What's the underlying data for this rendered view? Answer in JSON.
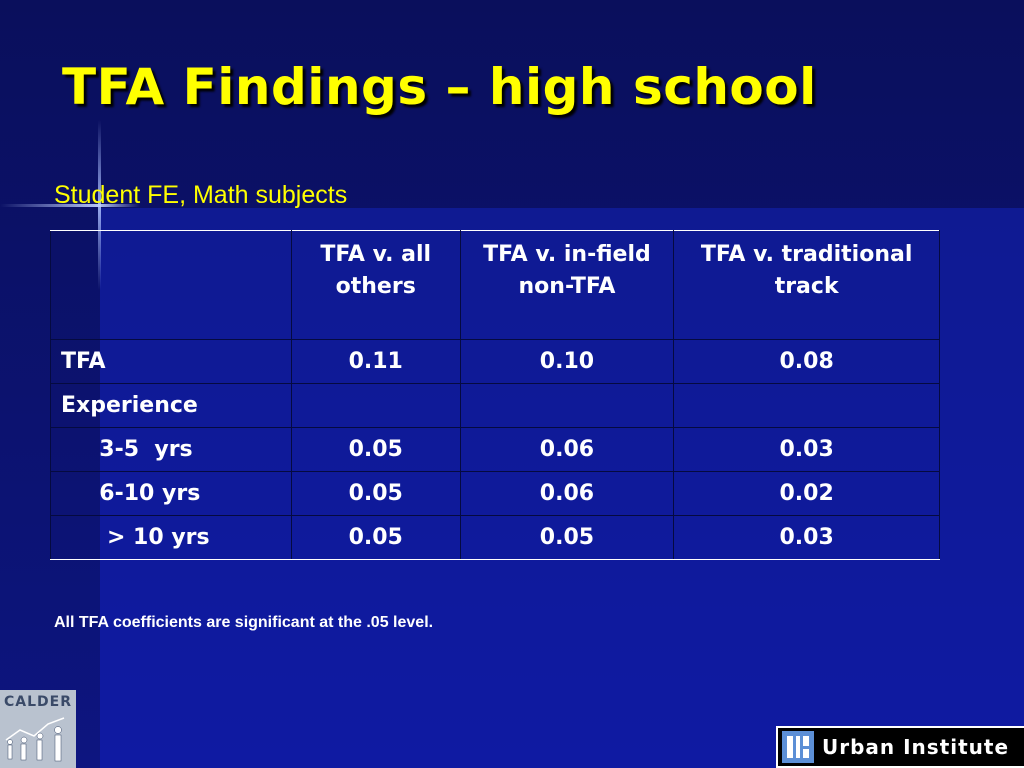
{
  "slide": {
    "title": "TFA Findings – high school",
    "subtitle": "Student FE, Math subjects",
    "footnote": "All TFA coefficients are significant at the .05 level."
  },
  "table": {
    "headers": [
      "",
      "TFA v. all others",
      "TFA v. in-field non-TFA",
      "TFA v. traditional track"
    ],
    "rows": [
      {
        "label": "TFA",
        "values": [
          "0.11",
          "0.10",
          "0.08"
        ]
      },
      {
        "label": "Experience",
        "values": [
          "",
          "",
          ""
        ]
      },
      {
        "label": "     3-5  yrs",
        "values": [
          "0.05",
          "0.06",
          "0.03"
        ]
      },
      {
        "label": "     6-10 yrs",
        "values": [
          "0.05",
          "0.06",
          "0.02"
        ]
      },
      {
        "label": "      > 10 yrs",
        "values": [
          "0.05",
          "0.05",
          "0.03"
        ]
      }
    ]
  },
  "logos": {
    "calder": "CALDER",
    "urban": "Urban Institute"
  },
  "colors": {
    "background": "#0b1170",
    "title": "#ffff00",
    "table_text": "#ffffff"
  }
}
